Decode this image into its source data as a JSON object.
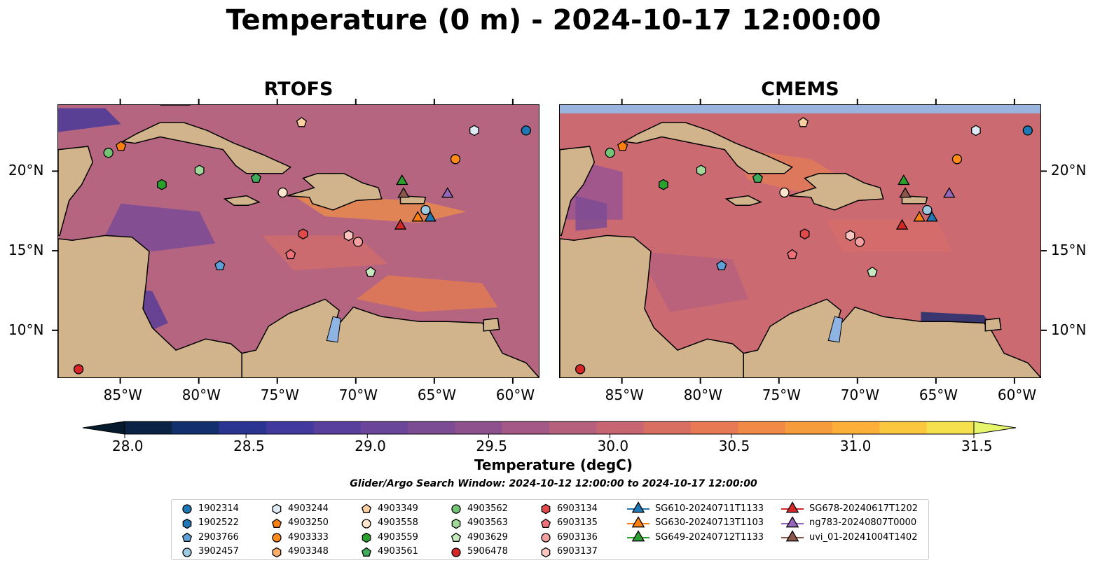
{
  "title": "Temperature (0 m) - 2024-10-17 12:00:00",
  "panels": [
    {
      "title": "RTOFS"
    },
    {
      "title": "CMEMS"
    }
  ],
  "x_ticks": [
    "85°W",
    "80°W",
    "75°W",
    "70°W",
    "65°W",
    "60°W"
  ],
  "x_tick_values": [
    -85,
    -80,
    -75,
    -70,
    -65,
    -60
  ],
  "y_ticks": [
    "20°N",
    "15°N",
    "10°N"
  ],
  "y_tick_values": [
    20,
    15,
    10
  ],
  "extent": {
    "lon": [
      -89,
      -58.3
    ],
    "lat": [
      7,
      24.2
    ]
  },
  "colorbar": {
    "label": "Temperature (degC)",
    "min": 28.0,
    "max": 31.5,
    "tick_labels": [
      "28.0",
      "28.5",
      "29.0",
      "29.5",
      "30.0",
      "30.5",
      "31.0",
      "31.5"
    ],
    "tick_values": [
      28.0,
      28.5,
      29.0,
      29.5,
      30.0,
      30.5,
      31.0,
      31.5
    ],
    "colors": [
      "#0b2446",
      "#13306e",
      "#2a3592",
      "#41399e",
      "#583e9d",
      "#6b4599",
      "#7c4b93",
      "#8f518d",
      "#a35886",
      "#b65f7d",
      "#c76672",
      "#d96f63",
      "#e77a54",
      "#f18a47",
      "#f79c3d",
      "#fcb03a",
      "#fac73f",
      "#f5e04d"
    ],
    "over_color": "#e7f56c",
    "under_color": "#051a2c"
  },
  "search_window": "Glider/Argo Search Window: 2024-10-12 12:00:00 to 2024-10-17 12:00:00",
  "colors": {
    "land": "#d2b48c",
    "ocean_rtofs": "#b66580",
    "ocean_cmems": "#cc6a72",
    "lake": "#8fb4e3",
    "nodata_band": "#9ab4e0"
  },
  "legend": [
    {
      "label": "1902314",
      "marker": "circle",
      "color": "#1f77b4",
      "lon": -59.2,
      "lat": 22.6
    },
    {
      "label": "1902522",
      "marker": "hexagon",
      "color": "#1f77b4",
      "lon": null,
      "lat": null
    },
    {
      "label": "2903766",
      "marker": "pentagon",
      "color": "#5fa0d8",
      "lon": -78.7,
      "lat": 14.1
    },
    {
      "label": "3902457",
      "marker": "circle",
      "color": "#9ecae1",
      "lon": -65.6,
      "lat": 17.6
    },
    {
      "label": "4903244",
      "marker": "hexagon",
      "color": "#deebf7",
      "lon": -62.5,
      "lat": 22.6
    },
    {
      "label": "4903250",
      "marker": "pentagon",
      "color": "#ff7f0e",
      "lon": -85.0,
      "lat": 21.6
    },
    {
      "label": "4903333",
      "marker": "circle",
      "color": "#ff8c1a",
      "lon": -63.7,
      "lat": 20.8
    },
    {
      "label": "4903348",
      "marker": "hexagon",
      "color": "#fdae6b",
      "lon": null,
      "lat": null
    },
    {
      "label": "4903349",
      "marker": "pentagon",
      "color": "#fdd0a2",
      "lon": -73.5,
      "lat": 23.1
    },
    {
      "label": "4903558",
      "marker": "circle",
      "color": "#fee6ce",
      "lon": -74.7,
      "lat": 18.7
    },
    {
      "label": "4903559",
      "marker": "hexagon",
      "color": "#2ca02c",
      "lon": -82.4,
      "lat": 19.2
    },
    {
      "label": "4903561",
      "marker": "pentagon",
      "color": "#41ab5d",
      "lon": -76.4,
      "lat": 19.6
    },
    {
      "label": "4903562",
      "marker": "circle",
      "color": "#74c476",
      "lon": -85.8,
      "lat": 21.2
    },
    {
      "label": "4903563",
      "marker": "hexagon",
      "color": "#a1d99b",
      "lon": -80.0,
      "lat": 20.1
    },
    {
      "label": "4903629",
      "marker": "pentagon",
      "color": "#c7e9c0",
      "lon": -69.1,
      "lat": 13.7
    },
    {
      "label": "5906478",
      "marker": "circle",
      "color": "#d62728",
      "lon": -87.7,
      "lat": 7.6
    },
    {
      "label": "6903134",
      "marker": "hexagon",
      "color": "#e04a4a",
      "lon": -73.4,
      "lat": 16.1
    },
    {
      "label": "6903135",
      "marker": "pentagon",
      "color": "#f0707a",
      "lon": -74.2,
      "lat": 14.8
    },
    {
      "label": "6903136",
      "marker": "circle",
      "color": "#f4a0a0",
      "lon": -69.9,
      "lat": 15.6
    },
    {
      "label": "6903137",
      "marker": "hexagon",
      "color": "#fcc5c0",
      "lon": -70.5,
      "lat": 16.0
    },
    {
      "label": "SG610-20240711T1133",
      "marker": "triangle",
      "color": "#1f77b4",
      "line": true,
      "lon": -65.3,
      "lat": 17.1
    },
    {
      "label": "SG630-20240713T1103",
      "marker": "triangle",
      "color": "#ff7f0e",
      "line": true,
      "lon": -66.1,
      "lat": 17.1
    },
    {
      "label": "SG649-20240712T1133",
      "marker": "triangle",
      "color": "#2ca02c",
      "line": true,
      "lon": -67.1,
      "lat": 19.4
    },
    {
      "label": "SG678-20240617T1202",
      "marker": "triangle",
      "color": "#d62728",
      "line": true,
      "lon": -67.2,
      "lat": 16.6
    },
    {
      "label": "ng783-20240807T0000",
      "marker": "triangle",
      "color": "#9467bd",
      "line": true,
      "lon": -64.2,
      "lat": 18.6
    },
    {
      "label": "uvi_01-20241004T1402",
      "marker": "triangle",
      "color": "#8c564b",
      "line": true,
      "lon": -67.0,
      "lat": 18.6
    }
  ]
}
